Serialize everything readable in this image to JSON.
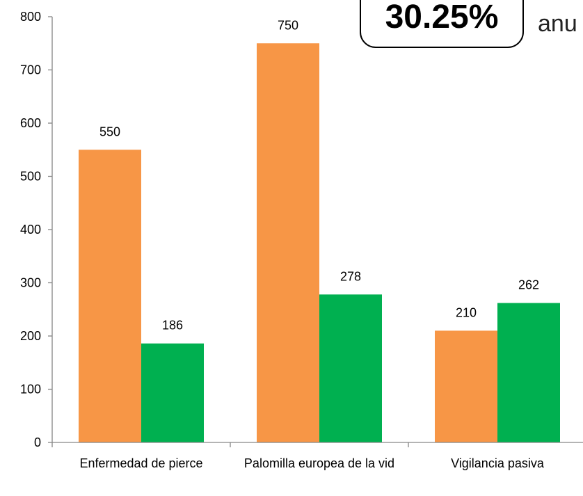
{
  "chart_data": {
    "type": "bar",
    "categories": [
      "Enfermedad de pierce",
      "Palomilla europea de la vid",
      "Vigilancia pasiva"
    ],
    "series": [
      {
        "color": "#f79646",
        "values": [
          550,
          750,
          210
        ]
      },
      {
        "color": "#00b050",
        "values": [
          186,
          278,
          262
        ]
      }
    ],
    "ylim": [
      0,
      800
    ],
    "yticks": [
      0,
      100,
      200,
      300,
      400,
      500,
      600,
      700,
      800
    ],
    "annotations": [
      "30.25%",
      "anu"
    ]
  }
}
